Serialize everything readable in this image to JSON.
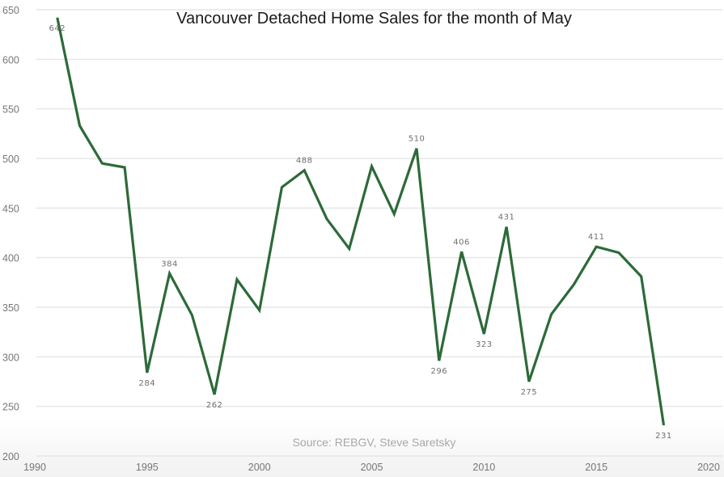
{
  "chart_data": {
    "type": "line",
    "title": "Vancouver Detached Home Sales for the month of May",
    "source": "Source: REBGV, Steve Saretsky",
    "xlabel": "",
    "ylabel": "",
    "xlim": [
      1990,
      2020
    ],
    "ylim": [
      200,
      650
    ],
    "x_ticks": [
      1990,
      1995,
      2000,
      2005,
      2010,
      2015,
      2020
    ],
    "y_ticks": [
      200,
      250,
      300,
      350,
      400,
      450,
      500,
      550,
      600,
      650
    ],
    "grid": "horizontal",
    "legend": "none",
    "line_color": "#2d6a39",
    "series": [
      {
        "name": "Detached Home Sales (May)",
        "x": [
          1991,
          1992,
          1993,
          1994,
          1995,
          1996,
          1997,
          1998,
          1999,
          2000,
          2001,
          2002,
          2003,
          2004,
          2005,
          2006,
          2007,
          2008,
          2009,
          2010,
          2011,
          2012,
          2013,
          2014,
          2015,
          2016,
          2017,
          2018
        ],
        "values": [
          642,
          533,
          495,
          491,
          284,
          384,
          342,
          262,
          378,
          347,
          471,
          488,
          439,
          409,
          492,
          444,
          510,
          296,
          406,
          323,
          431,
          275,
          343,
          373,
          411,
          405,
          381,
          231
        ]
      }
    ],
    "annotations": [
      {
        "x": 1991,
        "label": "642",
        "pos": "below"
      },
      {
        "x": 1995,
        "label": "284",
        "pos": "below"
      },
      {
        "x": 1996,
        "label": "384",
        "pos": "above"
      },
      {
        "x": 1998,
        "label": "262",
        "pos": "below"
      },
      {
        "x": 2002,
        "label": "488",
        "pos": "above"
      },
      {
        "x": 2007,
        "label": "510",
        "pos": "above"
      },
      {
        "x": 2008,
        "label": "296",
        "pos": "below"
      },
      {
        "x": 2009,
        "label": "406",
        "pos": "above"
      },
      {
        "x": 2010,
        "label": "323",
        "pos": "below"
      },
      {
        "x": 2011,
        "label": "431",
        "pos": "above"
      },
      {
        "x": 2012,
        "label": "275",
        "pos": "below"
      },
      {
        "x": 2015,
        "label": "411",
        "pos": "above"
      },
      {
        "x": 2018,
        "label": "231",
        "pos": "below"
      }
    ]
  }
}
